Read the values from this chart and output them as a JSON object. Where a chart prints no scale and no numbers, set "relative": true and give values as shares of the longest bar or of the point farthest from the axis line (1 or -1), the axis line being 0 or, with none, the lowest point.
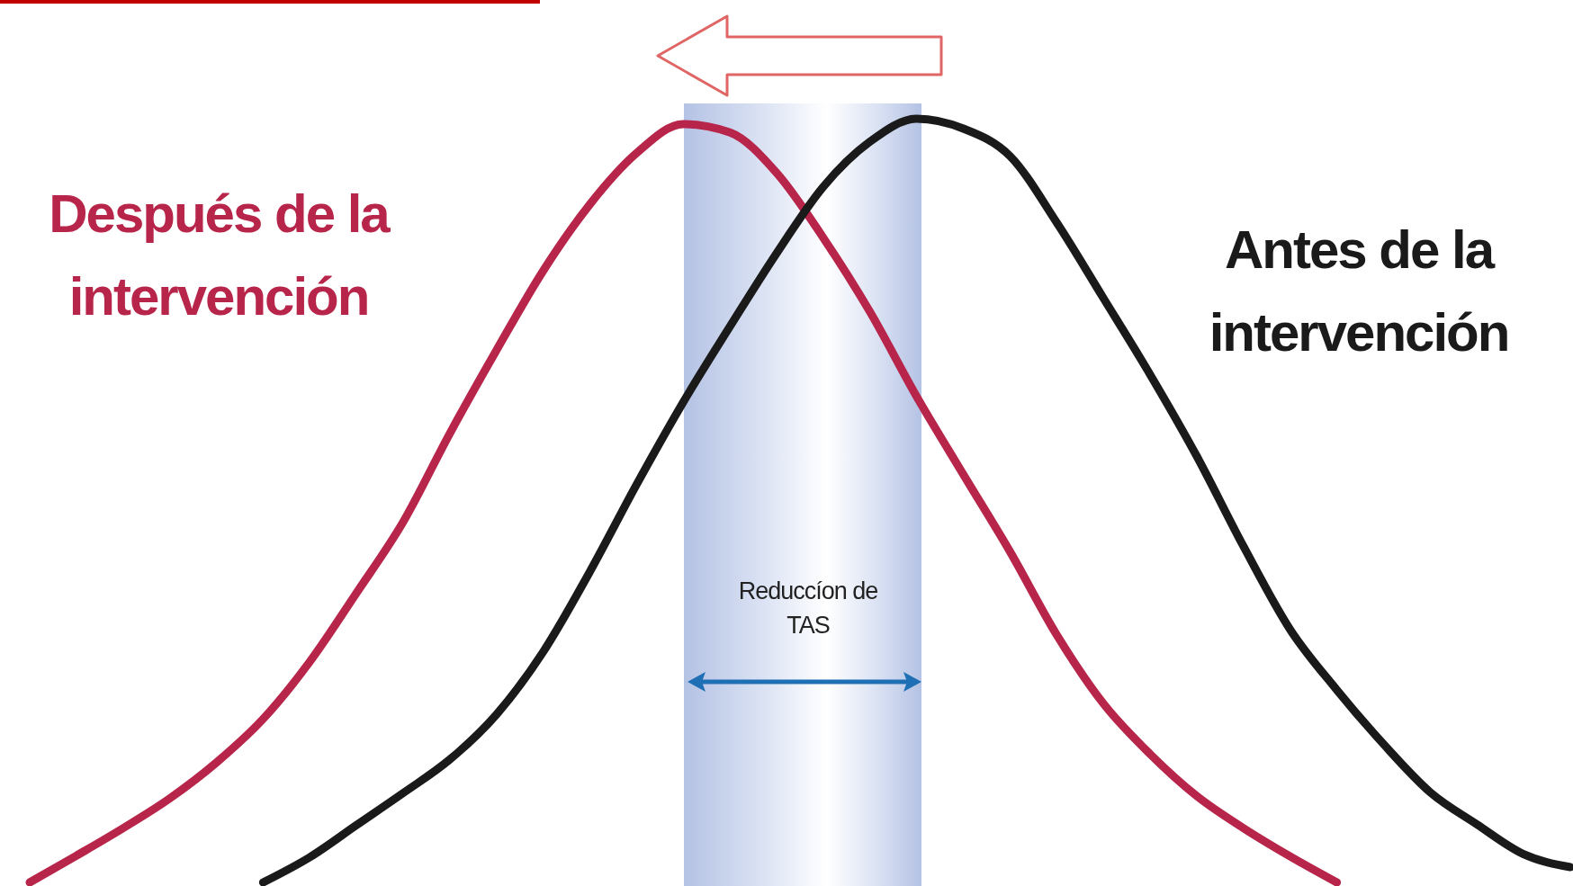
{
  "chart_data": {
    "type": "line",
    "relative": true,
    "categories": [
      null,
      null,
      null,
      null,
      null,
      null,
      null,
      null,
      null,
      null,
      null,
      null,
      null,
      null,
      null,
      null,
      null,
      null,
      null,
      null,
      null,
      null,
      null,
      null,
      null,
      null,
      null,
      null,
      null,
      null,
      null,
      null,
      null,
      null
    ],
    "series": [
      {
        "name": "Después de la intervención",
        "color": "#b8254a",
        "values": [
          0,
          0.035,
          0.071,
          0.11,
          0.157,
          0.214,
          0.289,
          0.379,
          0.472,
          0.588,
          0.697,
          0.801,
          0.888,
          0.955,
          0.993,
          0.982,
          0.929,
          0.844,
          0.747,
          0.636,
          0.534,
          0.433,
          0.324,
          0.234,
          0.168,
          0.113,
          0.071,
          0.034,
          0,
          null,
          null,
          null,
          null,
          null
        ]
      },
      {
        "name": "Antes de la intervención",
        "color": "#1a1a1a",
        "values": [
          null,
          null,
          null,
          null,
          null,
          0,
          0.033,
          0.075,
          0.117,
          0.161,
          0.22,
          0.302,
          0.407,
          0.521,
          0.629,
          0.728,
          0.824,
          0.911,
          0.97,
          1,
          0.987,
          0.951,
          0.864,
          0.765,
          0.665,
          0.558,
          0.44,
          0.331,
          0.252,
          0.181,
          0.118,
          0.076,
          0.037,
          0.02
        ]
      }
    ],
    "annotations": [
      "Reduccíon de TAS"
    ]
  }
}
